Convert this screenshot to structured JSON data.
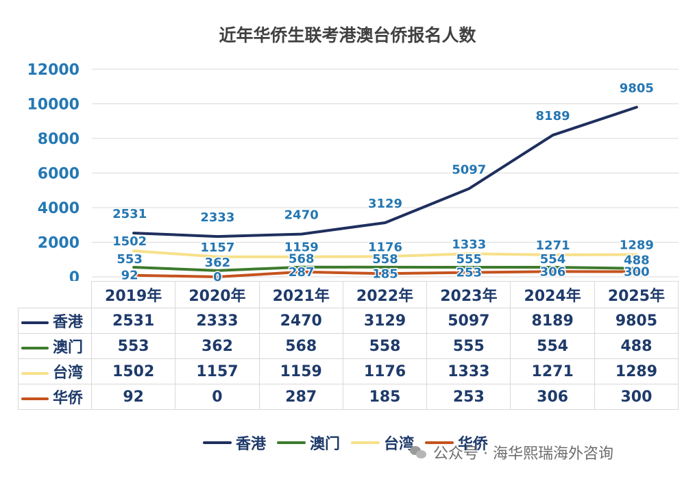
{
  "chart_data": {
    "type": "line",
    "title": "近年华侨生联考港澳台侨报名人数",
    "categories": [
      "2019年",
      "2020年",
      "2021年",
      "2022年",
      "2023年",
      "2024年",
      "2025年"
    ],
    "ylim": [
      0,
      12000
    ],
    "yticks": [
      "0",
      "2000",
      "4000",
      "6000",
      "8000",
      "10000",
      "12000"
    ],
    "grid": true,
    "legend": "bottom",
    "data_table": true,
    "series": [
      {
        "name": "香港",
        "color": "#1f2f5e",
        "values": [
          2531,
          2333,
          2470,
          3129,
          5097,
          8189,
          9805
        ]
      },
      {
        "name": "澳门",
        "color": "#3d7a2c",
        "values": [
          553,
          362,
          568,
          558,
          555,
          554,
          488
        ]
      },
      {
        "name": "台湾",
        "color": "#f7e08a",
        "values": [
          1502,
          1157,
          1159,
          1176,
          1333,
          1271,
          1289
        ]
      },
      {
        "name": "华侨",
        "color": "#c5531f",
        "values": [
          92,
          0,
          287,
          185,
          253,
          306,
          300
        ]
      }
    ]
  },
  "watermark": {
    "text": "公众号 · 海华熙瑞海外咨询",
    "icon": "wechat-icon"
  }
}
